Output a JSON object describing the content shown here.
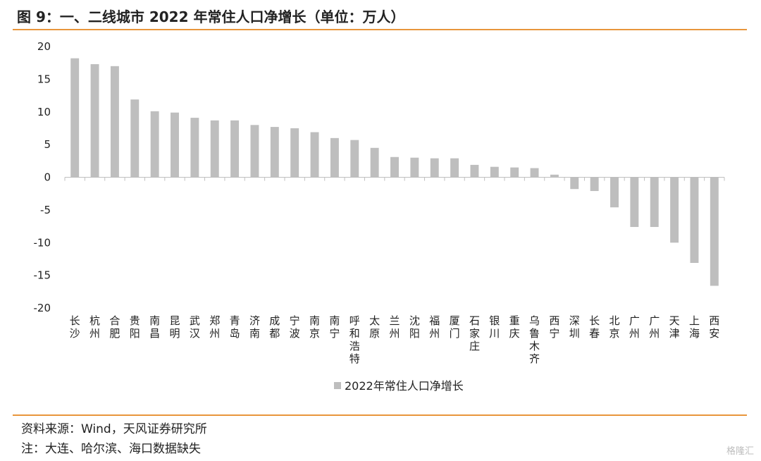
{
  "header": {
    "title": "图 9：一、二线城市 2022 年常住人口净增长（单位：万人）"
  },
  "footer": {
    "source": "资料来源：Wind，天风证券研究所",
    "note": "注：大连、哈尔滨、海口数据缺失"
  },
  "watermark": {
    "text": "格隆汇"
  },
  "colors": {
    "accent": "#E8963C",
    "bar": "#BEBEBE",
    "axis": "#BFBFBF"
  },
  "chart_data": {
    "type": "bar",
    "title": "",
    "xlabel": "",
    "ylabel": "",
    "ylim": [
      -20,
      20
    ],
    "yticks": [
      20,
      15,
      10,
      5,
      0,
      -5,
      -10,
      -15,
      -20
    ],
    "legend": {
      "position": "bottom",
      "entries": [
        "2022年常住人口净增长"
      ]
    },
    "categories": [
      "长沙",
      "杭州",
      "合肥",
      "贵阳",
      "南昌",
      "昆明",
      "武汉",
      "郑州",
      "青岛",
      "济南",
      "成都",
      "宁波",
      "南京",
      "南宁",
      "呼和浩特",
      "太原",
      "兰州",
      "沈阳",
      "福州",
      "厦门",
      "石家庄",
      "银川",
      "重庆",
      "乌鲁木齐",
      "西宁",
      "深圳",
      "长春",
      "北京",
      "广州",
      "广州",
      "天津",
      "上海",
      "西安"
    ],
    "series": [
      {
        "name": "2022年常住人口净增长",
        "values": [
          18.2,
          17.3,
          17.0,
          11.9,
          10.1,
          9.9,
          9.1,
          8.7,
          8.7,
          8.0,
          7.7,
          7.5,
          6.9,
          6.0,
          5.7,
          4.5,
          3.1,
          3.0,
          2.9,
          2.9,
          1.9,
          1.6,
          1.5,
          1.4,
          0.4,
          -1.8,
          -2.1,
          -4.6,
          -7.6,
          -7.6,
          -10.0,
          -13.1,
          -16.6
        ]
      }
    ]
  }
}
